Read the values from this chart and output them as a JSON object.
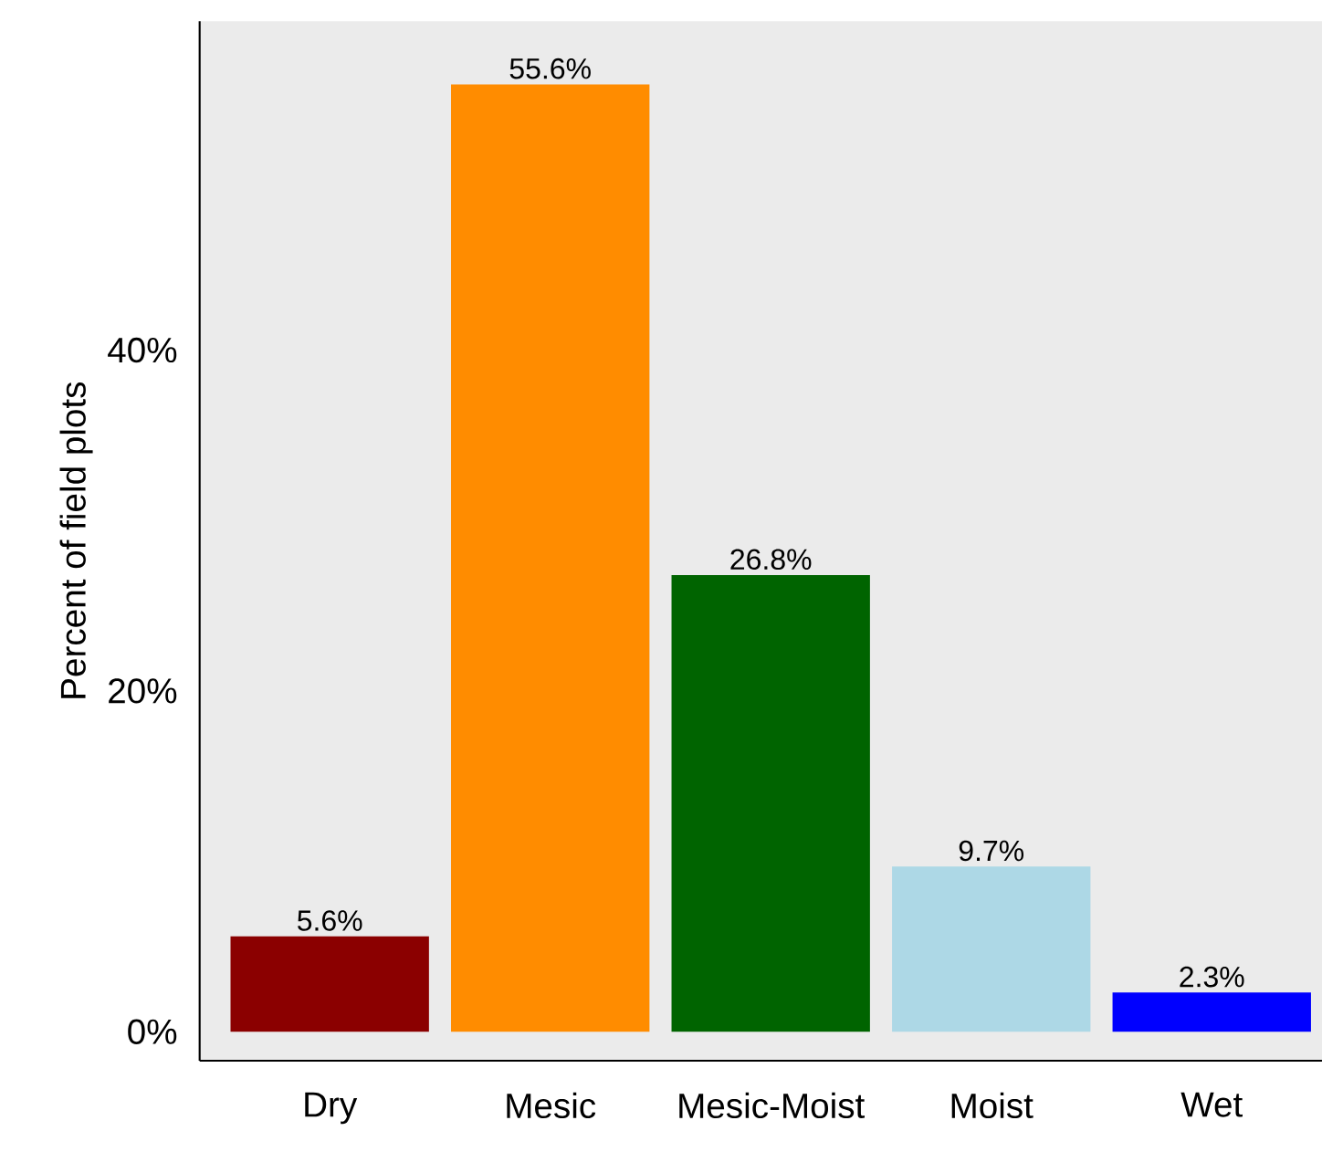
{
  "chart_data": {
    "type": "bar",
    "ylabel": "Percent of field plots",
    "categories": [
      "Dry",
      "Mesic",
      "Mesic-Moist",
      "Moist",
      "Wet"
    ],
    "values": [
      5.6,
      55.6,
      26.8,
      9.7,
      2.3
    ],
    "colors": [
      "#8b0000",
      "#ff8c00",
      "#006400",
      "#add8e6",
      "#0000ff"
    ],
    "value_labels": [
      "5.6%",
      "55.6%",
      "26.8%",
      "9.7%",
      "2.3%"
    ],
    "ylim": [
      -1.7,
      59.3
    ],
    "yticks": [
      {
        "value": 0,
        "label": "0%"
      },
      {
        "value": 20,
        "label": "20%"
      },
      {
        "value": 40,
        "label": "40%"
      }
    ],
    "grid": false
  }
}
